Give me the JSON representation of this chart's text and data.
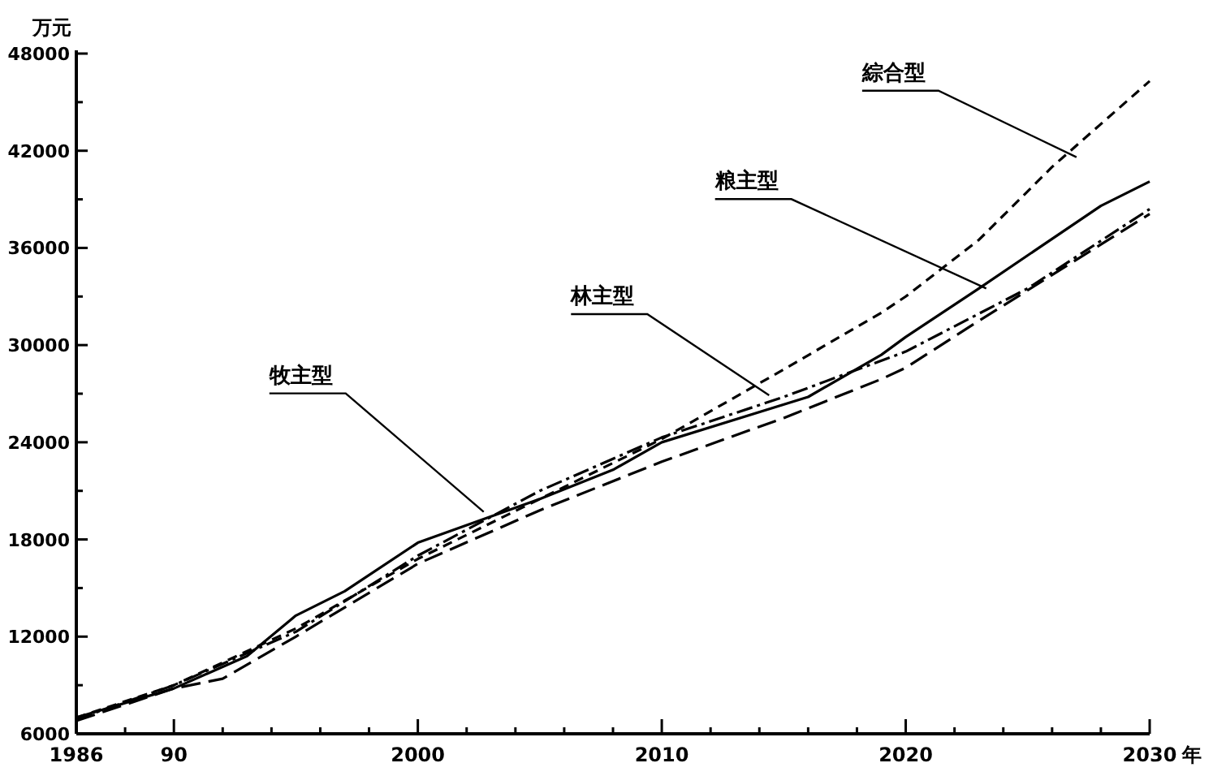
{
  "chart_data": {
    "type": "line",
    "ylabel": "万元",
    "xlabel": "年",
    "xlim": [
      1986,
      2030
    ],
    "ylim": [
      6000,
      48000
    ],
    "xticks": [
      {
        "value": 1986,
        "label": "1986"
      },
      {
        "value": 1988,
        "label": null
      },
      {
        "value": 1990,
        "label": "90"
      },
      {
        "value": 1992,
        "label": null
      },
      {
        "value": 1994,
        "label": null
      },
      {
        "value": 1996,
        "label": null
      },
      {
        "value": 1998,
        "label": null
      },
      2000,
      {
        "value": 2002,
        "label": null
      },
      {
        "value": 2004,
        "label": null
      },
      {
        "value": 2006,
        "label": null
      },
      {
        "value": 2008,
        "label": null
      },
      2010,
      {
        "value": 2012,
        "label": null
      },
      {
        "value": 2014,
        "label": null
      },
      {
        "value": 2016,
        "label": null
      },
      {
        "value": 2018,
        "label": null
      },
      2020,
      {
        "value": 2022,
        "label": null
      },
      {
        "value": 2024,
        "label": null
      },
      {
        "value": 2026,
        "label": null
      },
      {
        "value": 2028,
        "label": null
      },
      2030
    ],
    "yticks": [
      6000,
      {
        "value": 9000,
        "label": null
      },
      12000,
      {
        "value": 15000,
        "label": null
      },
      18000,
      {
        "value": 21000,
        "label": null
      },
      24000,
      {
        "value": 27000,
        "label": null
      },
      30000,
      {
        "value": 33000,
        "label": null
      },
      36000,
      {
        "value": 39000,
        "label": null
      },
      42000,
      {
        "value": 45000,
        "label": null
      },
      48000
    ],
    "series": [
      {
        "color": "#000000",
        "line_style": "dashed",
        "x": [
          1986,
          1990,
          1995,
          2000,
          2005,
          2010,
          2015,
          2019,
          2020,
          2023,
          2026,
          2030
        ],
        "values": [
          7000,
          9000,
          12500,
          16800,
          20500,
          24200,
          28500,
          32000,
          33000,
          36500,
          41000,
          46300
        ]
      },
      {
        "color": "#000000",
        "line_style": "solid",
        "x": [
          1986,
          1990,
          1993,
          1995,
          1997,
          2000,
          2005,
          2008,
          2010,
          2016,
          2019,
          2020,
          2023,
          2028,
          2030
        ],
        "values": [
          7000,
          8800,
          10800,
          13300,
          14800,
          17800,
          20500,
          22300,
          24000,
          26800,
          29400,
          30500,
          33500,
          38600,
          40100
        ]
      },
      {
        "color": "#000000",
        "line_style": "dashdot",
        "x": [
          1986,
          1990,
          1995,
          2000,
          2005,
          2010,
          2015,
          2020,
          2025,
          2030
        ],
        "values": [
          6900,
          9000,
          12300,
          17000,
          21000,
          24300,
          26800,
          29600,
          33500,
          38400
        ]
      },
      {
        "color": "#000000",
        "line_style": "longdash",
        "x": [
          1986,
          1990,
          1992,
          1995,
          2000,
          2005,
          2010,
          2015,
          2019,
          2020,
          2023,
          2030
        ],
        "values": [
          6800,
          8800,
          9400,
          12000,
          16500,
          19800,
          22800,
          25500,
          27900,
          28600,
          31500,
          38100
        ]
      }
    ],
    "annotations": [
      {
        "text": "綜合型",
        "x": 2027,
        "y": 41600
      },
      {
        "text": "粮主型",
        "x": 2023.3,
        "y": 33500
      },
      {
        "text": "林主型",
        "x": 2014.4,
        "y": 26900
      },
      {
        "text": "牧主型",
        "x": 2002.7,
        "y": 19700
      }
    ]
  }
}
